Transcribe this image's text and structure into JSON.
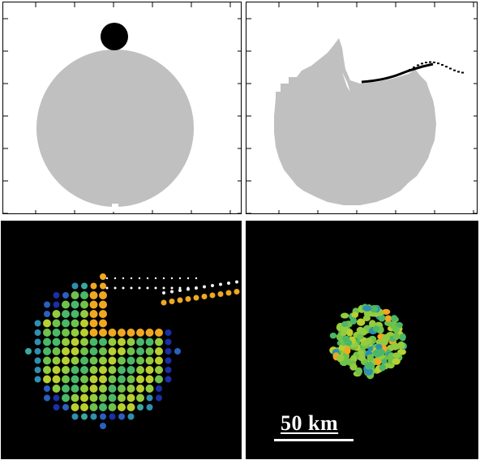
{
  "panels": {
    "top_left": {
      "colors": {
        "target": "#c0c0c0",
        "impactor": "#000000",
        "frame": "#000000"
      }
    },
    "top_right": {
      "colors": {
        "target": "#c0c0c0",
        "ejecta": "#000000"
      }
    },
    "bottom_left": {
      "colors": {
        "background": "#000000"
      }
    },
    "bottom_right": {
      "colors": {
        "background": "#000000"
      },
      "scale_bar": {
        "label": "50 km",
        "color": "#ffffff"
      }
    }
  },
  "particle_palette": [
    "#1a2fa8",
    "#2b5fc0",
    "#2f8fb0",
    "#3aa8a0",
    "#49b868",
    "#6fc24a",
    "#93cc3e",
    "#b9d030",
    "#dcc42a",
    "#f0a820",
    "#f08a1c",
    "#9a9a9a"
  ]
}
